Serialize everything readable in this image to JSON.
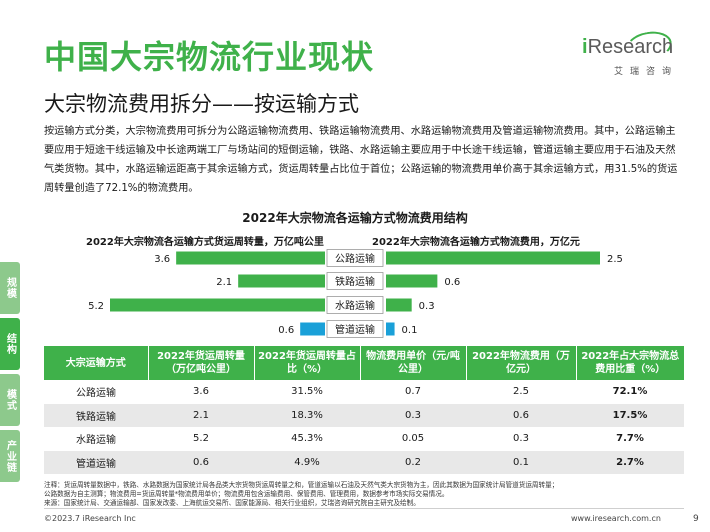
{
  "header": {
    "title": "中国大宗物流行业现状",
    "subtitle": "大宗物流费用拆分——按运输方式",
    "logo_text": "iResearch",
    "logo_cn": "艾瑞咨询"
  },
  "intro": "按运输方式分类，大宗物流费用可拆分为公路运输物流费用、铁路运输物流费用、水路运输物流费用及管道运输物流费用。其中，公路运输主要应用于短途干线运输及中长途两端工厂与场站间的短倒运输，铁路、水路运输主要应用于中长途干线运输，管道运输主要应用于石油及天然气类货物。其中，水路运输运距高于其余运输方式，货运周转量占比位于首位；公路运输的物流费用单价高于其余运输方式，用31.5%的货运周转量创造了72.1%的物流费用。",
  "side_tabs": [
    "规模",
    "结构",
    "模式",
    "产业链"
  ],
  "chart_data": {
    "type": "bar",
    "title": "2022年大宗物流各运输方式物流费用结构",
    "categories": [
      "公路运输",
      "铁路运输",
      "水路运输",
      "管道运输"
    ],
    "series": [
      {
        "name": "2022年大宗物流各运输方式货运周转量，万亿吨公里",
        "values": [
          3.6,
          2.1,
          5.2,
          0.6
        ],
        "direction": "left"
      },
      {
        "name": "2022年大宗物流各运输方式物流费用，万亿元",
        "values": [
          2.5,
          0.6,
          0.3,
          0.1
        ],
        "direction": "right"
      }
    ],
    "colors": [
      "#3fb14a",
      "#3fb14a",
      "#3fb14a",
      "#1aa0d8"
    ]
  },
  "table": {
    "headers": [
      "大宗运输方式",
      "2022年货运周转量（万亿吨公里）",
      "2022年货运周转量占比（%）",
      "物流费用单价（元/吨公里）",
      "2022年物流费用（万亿元）",
      "2022年占大宗物流总费用比重（%）"
    ],
    "rows": [
      [
        "公路运输",
        "3.6",
        "31.5%",
        "0.7",
        "2.5",
        "72.1%"
      ],
      [
        "铁路运输",
        "2.1",
        "18.3%",
        "0.3",
        "0.6",
        "17.5%"
      ],
      [
        "水路运输",
        "5.2",
        "45.3%",
        "0.05",
        "0.3",
        "7.7%"
      ],
      [
        "管道运输",
        "0.6",
        "4.9%",
        "0.2",
        "0.1",
        "2.7%"
      ]
    ]
  },
  "notes": {
    "line1": "注释：货运周转量数据中，铁路、水路数据为国家统计局各品类大宗货物货运周转量之和，管道运输以石油及天然气类大宗货物为主，因此其数据为国家统计局管道货运周转量；",
    "line2": "公路数据为自主测算；物流费用=货运周转量*物流费用单价；物流费用包含运输费用、保管费用、管理费用，数据参考市场实际交易情况。",
    "line3": "来源：国家统计局、交通运输部、国家发改委、上海航运交易所、国家能源局、相关行业组织，艾瑞咨询研究院自主研究及绘制。"
  },
  "footer": {
    "copyright": "©2023.7 iResearch Inc",
    "website": "www.iresearch.com.cn",
    "page": "9"
  }
}
